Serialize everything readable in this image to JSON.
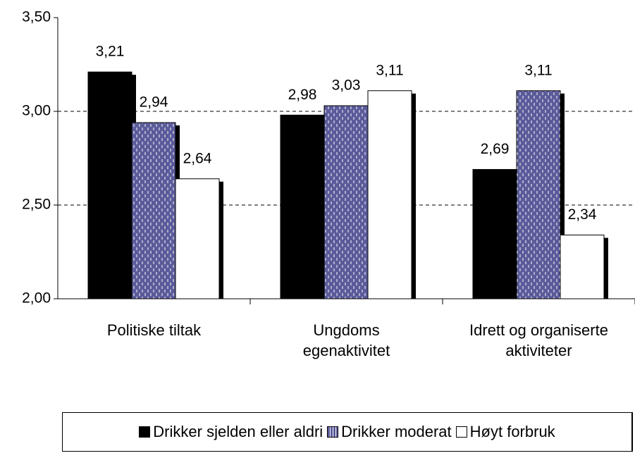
{
  "chart_data": {
    "type": "bar",
    "categories": [
      "Politiske tiltak",
      "Ungdoms\negenaktivitet",
      "Idrett og organiserte\naktiviteter"
    ],
    "series": [
      {
        "name": "Drikker sjelden eller aldri",
        "color": "#000000",
        "values": [
          3.21,
          2.98,
          2.69
        ],
        "value_labels": [
          "3,21",
          "2,98",
          "2,69"
        ]
      },
      {
        "name": "Drikker moderat",
        "color": "#5b5b9b",
        "values": [
          2.94,
          3.03,
          3.11
        ],
        "value_labels": [
          "2,94",
          "3,03",
          "3,11"
        ]
      },
      {
        "name": "Høyt forbruk",
        "color": "#ffffff",
        "values": [
          2.64,
          3.11,
          2.34
        ],
        "value_labels": [
          "2,64",
          "3,11",
          "2,34"
        ]
      }
    ],
    "ylim": [
      2.0,
      3.5
    ],
    "yticks": [
      {
        "value": 2.0,
        "label": "2,00"
      },
      {
        "value": 2.5,
        "label": "2,50"
      },
      {
        "value": 3.0,
        "label": "3,00"
      },
      {
        "value": 3.5,
        "label": "3,50"
      }
    ],
    "grid": true,
    "legend": "bottom"
  }
}
